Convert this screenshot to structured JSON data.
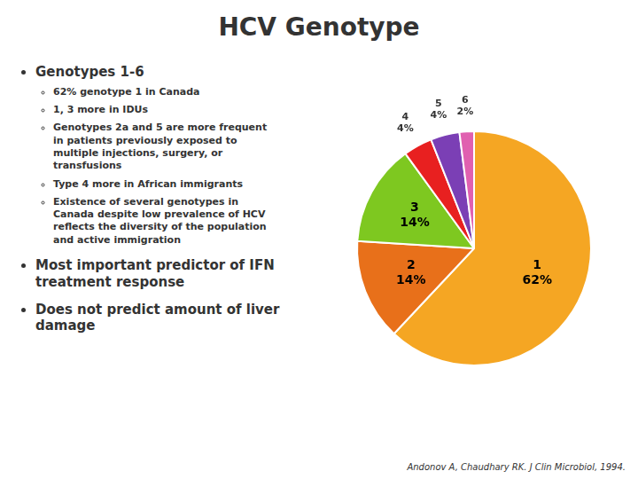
{
  "chart_data": {
    "type": "pie",
    "title": "HCV Genotype",
    "categories": [
      "1",
      "2",
      "3",
      "4",
      "5",
      "6"
    ],
    "values": [
      62,
      14,
      14,
      4,
      4,
      2
    ],
    "value_labels": [
      "62%",
      "14%",
      "14%",
      "4%",
      "4%",
      "2%"
    ],
    "colors": [
      "#f5a623",
      "#e8701a",
      "#7ec820",
      "#e82020",
      "#7b3fb5",
      "#e060b0"
    ],
    "data_labels": true,
    "annotations": [
      {
        "text": "Genotypes 1-6",
        "items": [
          "62% genotype 1 in Canada",
          "1, 3 more in IDUs",
          "Genotypes 2a and 5 are more frequent\nin patients previously exposed to\nmultiple injections, surgery, or\ntransfusions",
          "Type 4 more in African immigrants",
          "Existence of several genotypes in\nCanada despite low prevalence of HCV\nreflects the diversity of the population\nand active immigration"
        ]
      },
      {
        "text": "Most important predictor of IFN\ntreatment response"
      },
      {
        "text": "Does not predict amount of liver\ndamage"
      }
    ],
    "footnote": "Andonov A, Chaudhary RK. J Clin Microbiol, 1994."
  }
}
